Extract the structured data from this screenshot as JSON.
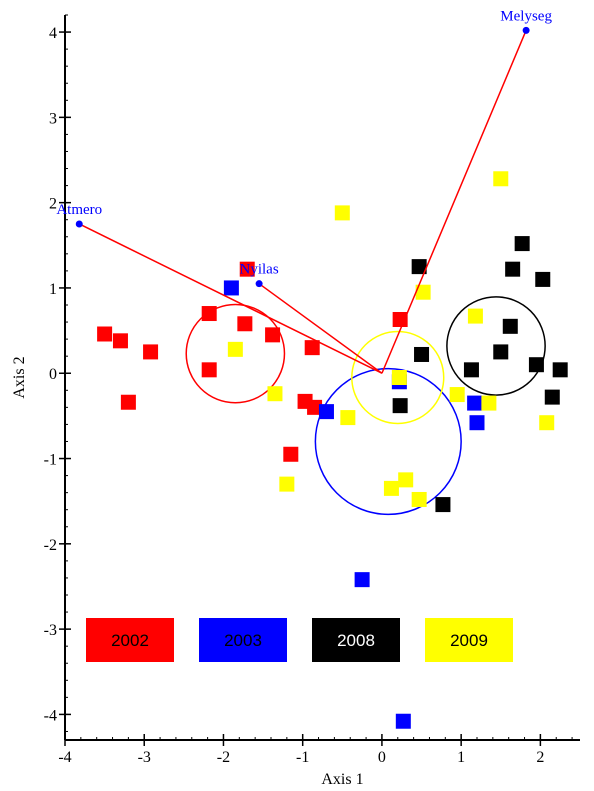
{
  "chart_data": {
    "type": "scatter",
    "title": "",
    "xlabel": "Axis 1",
    "ylabel": "Axis 2",
    "xlim": [
      -4,
      2.5
    ],
    "ylim": [
      -4.3,
      4.2
    ],
    "xticks": [
      -4,
      -3,
      -2,
      -1,
      0,
      1,
      2
    ],
    "yticks": [
      -4,
      -3,
      -2,
      -1,
      0,
      1,
      2,
      3,
      4
    ],
    "grid": false,
    "legend_position": "bottom",
    "series": [
      {
        "name": "2002",
        "color": "#ff0000",
        "points": [
          [
            -3.5,
            0.46
          ],
          [
            -3.3,
            0.38
          ],
          [
            -2.92,
            0.25
          ],
          [
            -3.2,
            -0.34
          ],
          [
            -2.18,
            0.7
          ],
          [
            -1.73,
            0.58
          ],
          [
            -1.38,
            0.45
          ],
          [
            -2.18,
            0.04
          ],
          [
            -1.7,
            1.22
          ],
          [
            -0.88,
            0.3
          ],
          [
            -0.97,
            -0.33
          ],
          [
            -0.85,
            -0.4
          ],
          [
            -1.15,
            -0.95
          ],
          [
            0.23,
            0.63
          ]
        ],
        "centroid": [
          -1.85,
          0.23
        ],
        "radius_x": 0.62
      },
      {
        "name": "2003",
        "color": "#0000ff",
        "points": [
          [
            -1.9,
            1.0
          ],
          [
            -0.7,
            -0.45
          ],
          [
            0.22,
            -0.1
          ],
          [
            1.17,
            -0.35
          ],
          [
            1.2,
            -0.58
          ],
          [
            -0.25,
            -2.42
          ],
          [
            0.27,
            -4.08
          ]
        ],
        "centroid": [
          0.08,
          -0.8
        ],
        "radius_x": 0.92
      },
      {
        "name": "2008",
        "color": "#000000",
        "points": [
          [
            0.47,
            1.25
          ],
          [
            0.5,
            0.22
          ],
          [
            0.23,
            -0.38
          ],
          [
            0.77,
            -1.54
          ],
          [
            1.13,
            0.04
          ],
          [
            1.5,
            0.25
          ],
          [
            1.62,
            0.55
          ],
          [
            1.65,
            1.22
          ],
          [
            1.77,
            1.52
          ],
          [
            1.95,
            0.1
          ],
          [
            2.03,
            1.1
          ],
          [
            2.15,
            -0.28
          ],
          [
            2.25,
            0.04
          ]
        ],
        "centroid": [
          1.44,
          0.32
        ],
        "radius_x": 0.62
      },
      {
        "name": "2009",
        "color": "#ffff00",
        "points": [
          [
            -0.5,
            1.88
          ],
          [
            0.52,
            0.95
          ],
          [
            -1.85,
            0.28
          ],
          [
            -1.35,
            -0.24
          ],
          [
            -1.2,
            -1.3
          ],
          [
            -0.43,
            -0.52
          ],
          [
            0.22,
            -0.05
          ],
          [
            0.95,
            -0.25
          ],
          [
            1.18,
            0.67
          ],
          [
            1.35,
            -0.35
          ],
          [
            1.5,
            2.28
          ],
          [
            2.08,
            -0.58
          ],
          [
            0.3,
            -1.25
          ],
          [
            0.12,
            -1.35
          ],
          [
            0.47,
            -1.48
          ]
        ],
        "centroid": [
          0.2,
          -0.05
        ],
        "radius_x": 0.58
      }
    ],
    "vectors": [
      {
        "label": "Atmero",
        "tip": [
          -3.82,
          1.75
        ],
        "label_color": "#0000ff"
      },
      {
        "label": "Nyilas",
        "tip": [
          -1.55,
          1.05
        ],
        "label_color": "#0000ff"
      },
      {
        "label": "Melyseg",
        "tip": [
          1.82,
          4.02
        ],
        "label_color": "#0000ff"
      }
    ],
    "vector_origin": [
      0.0,
      0.0
    ],
    "vector_color": "#ff0000",
    "legend": [
      {
        "label": "2002",
        "bg": "#ff0000",
        "text_color": "#000000"
      },
      {
        "label": "2003",
        "bg": "#0000ff",
        "text_color": "#000000"
      },
      {
        "label": "2008",
        "bg": "#000000",
        "text_color": "#ffffff"
      },
      {
        "label": "2009",
        "bg": "#ffff00",
        "text_color": "#000000"
      }
    ]
  }
}
